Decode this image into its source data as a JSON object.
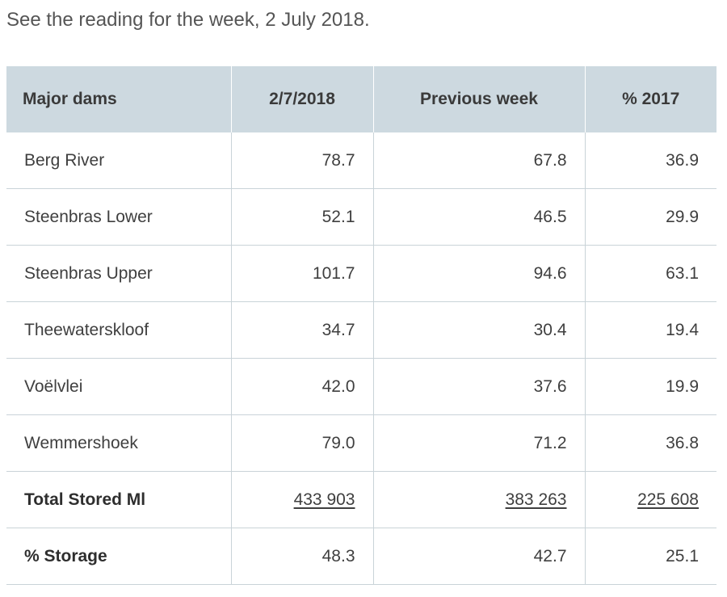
{
  "intro": "See the reading for the week, 2 July 2018.",
  "table": {
    "headers": [
      "Major dams",
      "2/7/2018",
      "Previous week",
      "% 2017"
    ],
    "rows": [
      {
        "name": "Berg River",
        "current": "78.7",
        "previous": "67.8",
        "last_year": "36.9"
      },
      {
        "name": "Steenbras Lower",
        "current": "52.1",
        "previous": "46.5",
        "last_year": "29.9"
      },
      {
        "name": "Steenbras Upper",
        "current": "101.7",
        "previous": "94.6",
        "last_year": "63.1"
      },
      {
        "name": "Theewaterskloof",
        "current": "34.7",
        "previous": "30.4",
        "last_year": "19.4"
      },
      {
        "name": "Voëlvlei",
        "current": "42.0",
        "previous": "37.6",
        "last_year": "19.9"
      },
      {
        "name": "Wemmershoek",
        "current": "79.0",
        "previous": "71.2",
        "last_year": "36.8"
      }
    ],
    "total": {
      "name": "Total Stored Ml",
      "current": "433 903",
      "previous": "383 263",
      "last_year": "225 608"
    },
    "storage": {
      "name": "% Storage",
      "current": "48.3",
      "previous": "42.7",
      "last_year": "25.1"
    }
  }
}
